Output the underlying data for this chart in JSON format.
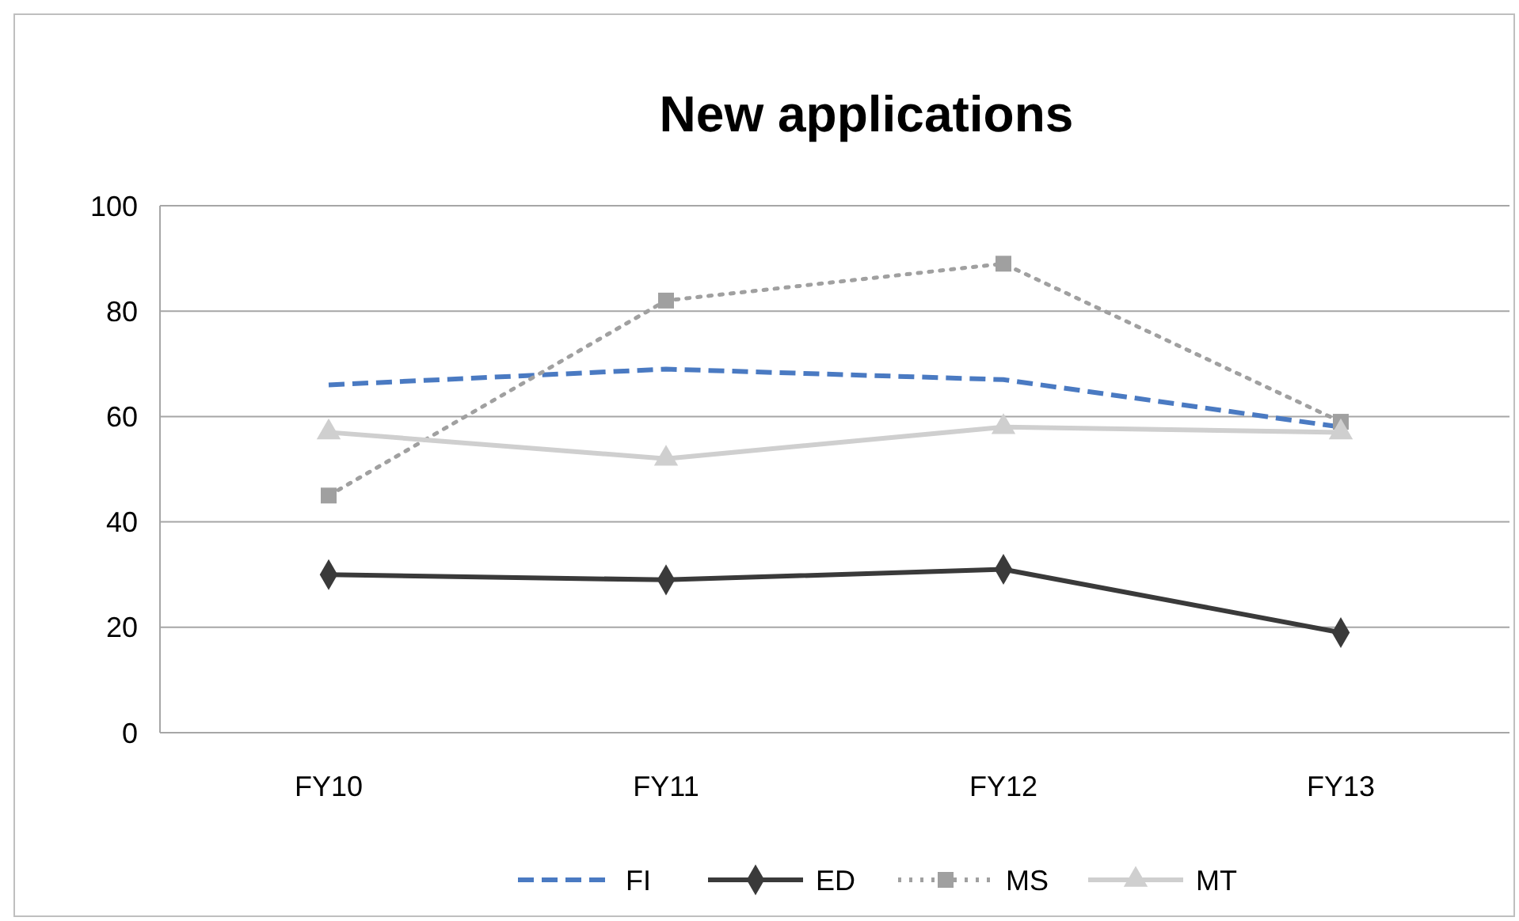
{
  "chart_data": {
    "type": "line",
    "title": "New applications",
    "categories": [
      "FY10",
      "FY11",
      "FY12",
      "FY13"
    ],
    "series": [
      {
        "name": "FI",
        "color": "#4a7ac2",
        "values": [
          66,
          69,
          67,
          58
        ],
        "marker": "none",
        "line_style": "dashed"
      },
      {
        "name": "ED",
        "color": "#3a3a3a",
        "values": [
          30,
          29,
          31,
          19
        ],
        "marker": "diamond",
        "line_style": "solid"
      },
      {
        "name": "MS",
        "color": "#a0a0a0",
        "values": [
          45,
          82,
          89,
          59
        ],
        "marker": "square",
        "line_style": "dotted"
      },
      {
        "name": "MT",
        "color": "#cfcfcf",
        "values": [
          57,
          52,
          58,
          57
        ],
        "marker": "triangle",
        "line_style": "solid"
      }
    ],
    "ylim": [
      0,
      100
    ],
    "yticks": [
      0,
      20,
      40,
      60,
      80,
      100
    ],
    "grid": "y",
    "legend": "bottom"
  }
}
